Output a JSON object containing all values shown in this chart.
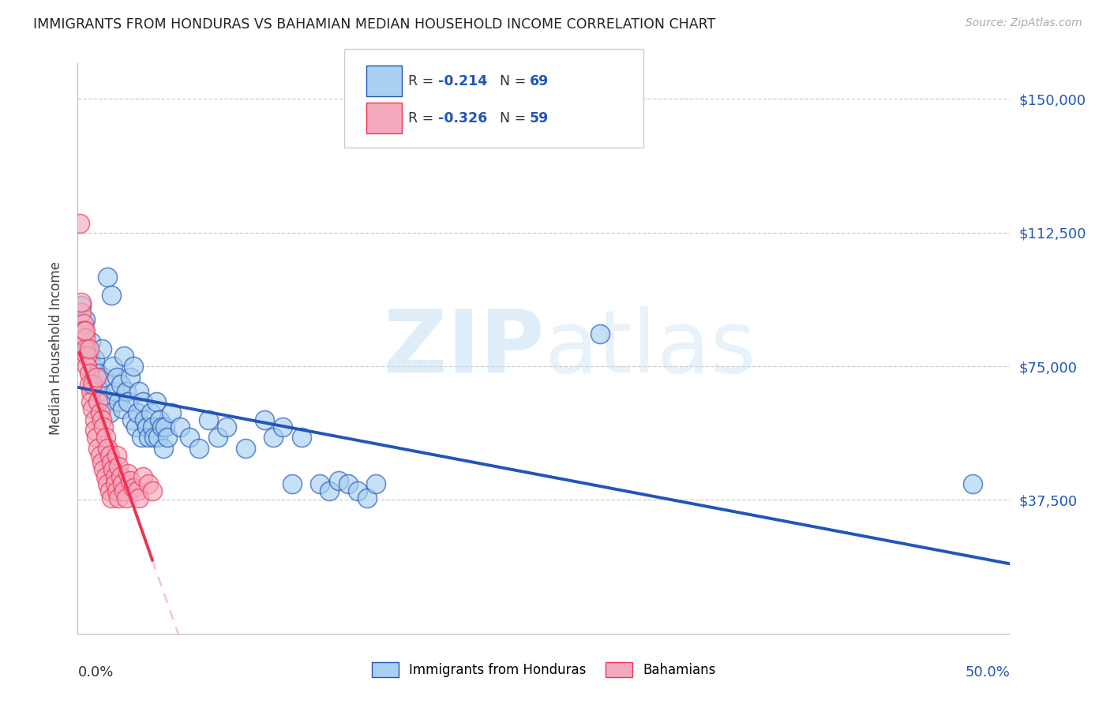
{
  "title": "IMMIGRANTS FROM HONDURAS VS BAHAMIAN MEDIAN HOUSEHOLD INCOME CORRELATION CHART",
  "source": "Source: ZipAtlas.com",
  "ylabel": "Median Household Income",
  "yticks": [
    0,
    37500,
    75000,
    112500,
    150000
  ],
  "ytick_labels": [
    "",
    "$37,500",
    "$75,000",
    "$112,500",
    "$150,000"
  ],
  "xmin": 0.0,
  "xmax": 0.5,
  "ymin": 0,
  "ymax": 160000,
  "color_blue": "#A8D0F0",
  "color_pink": "#F4AABE",
  "trendline_blue": "#2255BB",
  "trendline_pink": "#EE3355",
  "trendline_pink_dashed": "#F4AABE",
  "blue_scatter": [
    [
      0.002,
      92000
    ],
    [
      0.003,
      85000
    ],
    [
      0.004,
      88000
    ],
    [
      0.005,
      80000
    ],
    [
      0.006,
      78000
    ],
    [
      0.007,
      82000
    ],
    [
      0.008,
      75000
    ],
    [
      0.009,
      77000
    ],
    [
      0.01,
      70000
    ],
    [
      0.011,
      73000
    ],
    [
      0.012,
      68000
    ],
    [
      0.013,
      80000
    ],
    [
      0.014,
      72000
    ],
    [
      0.015,
      65000
    ],
    [
      0.016,
      100000
    ],
    [
      0.017,
      62000
    ],
    [
      0.018,
      95000
    ],
    [
      0.019,
      75000
    ],
    [
      0.02,
      68000
    ],
    [
      0.021,
      72000
    ],
    [
      0.022,
      65000
    ],
    [
      0.023,
      70000
    ],
    [
      0.024,
      63000
    ],
    [
      0.025,
      78000
    ],
    [
      0.026,
      68000
    ],
    [
      0.027,
      65000
    ],
    [
      0.028,
      72000
    ],
    [
      0.029,
      60000
    ],
    [
      0.03,
      75000
    ],
    [
      0.031,
      58000
    ],
    [
      0.032,
      62000
    ],
    [
      0.033,
      68000
    ],
    [
      0.034,
      55000
    ],
    [
      0.035,
      65000
    ],
    [
      0.036,
      60000
    ],
    [
      0.037,
      58000
    ],
    [
      0.038,
      55000
    ],
    [
      0.039,
      62000
    ],
    [
      0.04,
      58000
    ],
    [
      0.041,
      55000
    ],
    [
      0.042,
      65000
    ],
    [
      0.043,
      55000
    ],
    [
      0.044,
      60000
    ],
    [
      0.045,
      58000
    ],
    [
      0.046,
      52000
    ],
    [
      0.047,
      58000
    ],
    [
      0.048,
      55000
    ],
    [
      0.05,
      62000
    ],
    [
      0.055,
      58000
    ],
    [
      0.06,
      55000
    ],
    [
      0.065,
      52000
    ],
    [
      0.07,
      60000
    ],
    [
      0.075,
      55000
    ],
    [
      0.08,
      58000
    ],
    [
      0.09,
      52000
    ],
    [
      0.1,
      60000
    ],
    [
      0.105,
      55000
    ],
    [
      0.11,
      58000
    ],
    [
      0.115,
      42000
    ],
    [
      0.12,
      55000
    ],
    [
      0.13,
      42000
    ],
    [
      0.135,
      40000
    ],
    [
      0.14,
      43000
    ],
    [
      0.145,
      42000
    ],
    [
      0.15,
      40000
    ],
    [
      0.155,
      38000
    ],
    [
      0.16,
      42000
    ],
    [
      0.28,
      84000
    ],
    [
      0.48,
      42000
    ]
  ],
  "pink_scatter": [
    [
      0.001,
      115000
    ],
    [
      0.002,
      90000
    ],
    [
      0.002,
      93000
    ],
    [
      0.003,
      87000
    ],
    [
      0.003,
      85000
    ],
    [
      0.004,
      83000
    ],
    [
      0.004,
      80000
    ],
    [
      0.004,
      85000
    ],
    [
      0.005,
      78000
    ],
    [
      0.005,
      75000
    ],
    [
      0.006,
      73000
    ],
    [
      0.006,
      70000
    ],
    [
      0.006,
      80000
    ],
    [
      0.007,
      68000
    ],
    [
      0.007,
      65000
    ],
    [
      0.008,
      63000
    ],
    [
      0.008,
      70000
    ],
    [
      0.009,
      60000
    ],
    [
      0.009,
      57000
    ],
    [
      0.01,
      72000
    ],
    [
      0.01,
      55000
    ],
    [
      0.011,
      65000
    ],
    [
      0.011,
      52000
    ],
    [
      0.012,
      62000
    ],
    [
      0.012,
      50000
    ],
    [
      0.013,
      60000
    ],
    [
      0.013,
      48000
    ],
    [
      0.014,
      58000
    ],
    [
      0.014,
      46000
    ],
    [
      0.015,
      55000
    ],
    [
      0.015,
      44000
    ],
    [
      0.016,
      52000
    ],
    [
      0.016,
      42000
    ],
    [
      0.017,
      50000
    ],
    [
      0.017,
      40000
    ],
    [
      0.018,
      48000
    ],
    [
      0.018,
      38000
    ],
    [
      0.019,
      46000
    ],
    [
      0.02,
      44000
    ],
    [
      0.02,
      42000
    ],
    [
      0.021,
      50000
    ],
    [
      0.021,
      40000
    ],
    [
      0.022,
      47000
    ],
    [
      0.022,
      38000
    ],
    [
      0.023,
      44000
    ],
    [
      0.024,
      42000
    ],
    [
      0.025,
      40000
    ],
    [
      0.026,
      38000
    ],
    [
      0.027,
      45000
    ],
    [
      0.028,
      43000
    ],
    [
      0.03,
      41000
    ],
    [
      0.032,
      40000
    ],
    [
      0.033,
      38000
    ],
    [
      0.035,
      44000
    ],
    [
      0.038,
      42000
    ],
    [
      0.04,
      40000
    ]
  ]
}
